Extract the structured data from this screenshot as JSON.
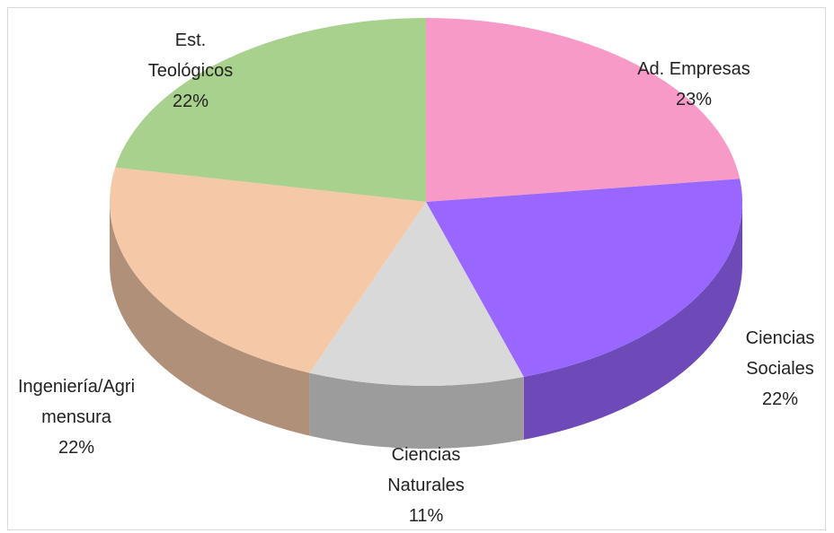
{
  "chart_data": {
    "type": "pie3d",
    "categories": [
      "Ad. Empresas",
      "Ciencias Sociales",
      "Ciencias Naturales",
      "Ingeniería/Agrimensura",
      "Est. Teológicos"
    ],
    "values": [
      23,
      22,
      11,
      22,
      22
    ],
    "value_labels": [
      "23%",
      "22%",
      "11%",
      "22%",
      "22%"
    ],
    "colors": [
      "#f79ac8",
      "#9966ff",
      "#d9d9d9",
      "#f5c8a8",
      "#a9d18e"
    ]
  }
}
